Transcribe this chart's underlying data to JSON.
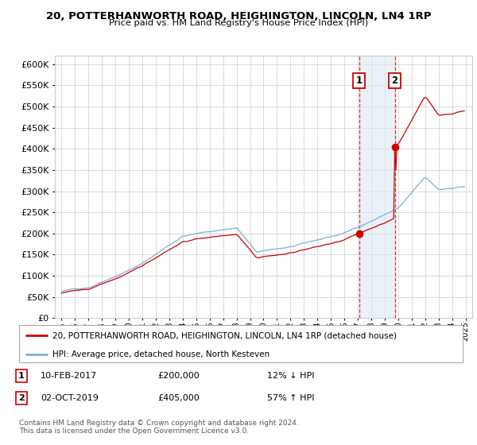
{
  "title": "20, POTTERHANWORTH ROAD, HEIGHINGTON, LINCOLN, LN4 1RP",
  "subtitle": "Price paid vs. HM Land Registry's House Price Index (HPI)",
  "legend_line1": "20, POTTERHANWORTH ROAD, HEIGHINGTON, LINCOLN, LN4 1RP (detached house)",
  "legend_line2": "HPI: Average price, detached house, North Kesteven",
  "transaction1_date": "10-FEB-2017",
  "transaction1_price": "£200,000",
  "transaction1_hpi": "12% ↓ HPI",
  "transaction1_year": 2017.1,
  "transaction1_value": 200000,
  "transaction2_date": "02-OCT-2019",
  "transaction2_price": "£405,000",
  "transaction2_hpi": "57% ↑ HPI",
  "transaction2_year": 2019.75,
  "transaction2_value": 405000,
  "footer": "Contains HM Land Registry data © Crown copyright and database right 2024.\nThis data is licensed under the Open Government Licence v3.0.",
  "ylim": [
    0,
    620000
  ],
  "yticks": [
    0,
    50000,
    100000,
    150000,
    200000,
    250000,
    300000,
    350000,
    400000,
    450000,
    500000,
    550000,
    600000
  ],
  "xlim": [
    1994.5,
    2025.5
  ],
  "red_color": "#cc0000",
  "blue_color": "#7aafd4",
  "background_color": "#ffffff",
  "grid_color": "#cccccc",
  "span_color": "#dce9f5"
}
